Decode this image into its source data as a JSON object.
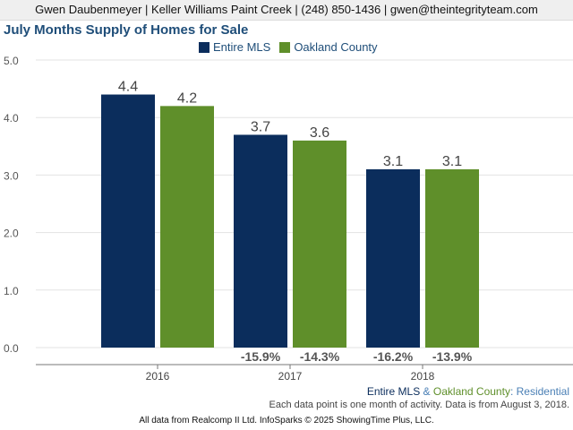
{
  "header": {
    "contact": "Gwen Daubenmeyer | Keller Williams Paint Creek | (248) 850-1436 | gwen@theintegrityteam.com"
  },
  "chart_data": {
    "type": "bar",
    "title": "July Months Supply of Homes for Sale",
    "categories": [
      "2016",
      "2017",
      "2018"
    ],
    "series": [
      {
        "name": "Entire MLS",
        "color": "#0b2d5c",
        "values": [
          4.4,
          3.7,
          3.1
        ],
        "labels": [
          "4.4",
          "3.7",
          "3.1"
        ],
        "changes": [
          "",
          "-15.9%",
          "-16.2%"
        ]
      },
      {
        "name": "Oakland County",
        "color": "#5f8f2a",
        "values": [
          4.2,
          3.6,
          3.1
        ],
        "labels": [
          "4.2",
          "3.6",
          "3.1"
        ],
        "changes": [
          "",
          "-14.3%",
          "-13.9%"
        ]
      }
    ],
    "ylim": [
      0,
      5
    ],
    "yticks": [
      "0.0",
      "1.0",
      "2.0",
      "3.0",
      "4.0",
      "5.0"
    ],
    "grid": true,
    "legend_position": "top-center"
  },
  "footer": {
    "entire": "Entire MLS",
    "amp": " & ",
    "county": "Oakland County",
    "colon": ": ",
    "residential": "Residential",
    "note": "Each data point is one month of activity. Data is from August 3, 2018.",
    "source": "All data from Realcomp II Ltd. InfoSparks © 2025 ShowingTime Plus, LLC."
  },
  "colors": {
    "entire": "#0b2d5c",
    "county": "#5f8f2a",
    "residential": "#4a7fb5",
    "change_text": "#555555"
  }
}
